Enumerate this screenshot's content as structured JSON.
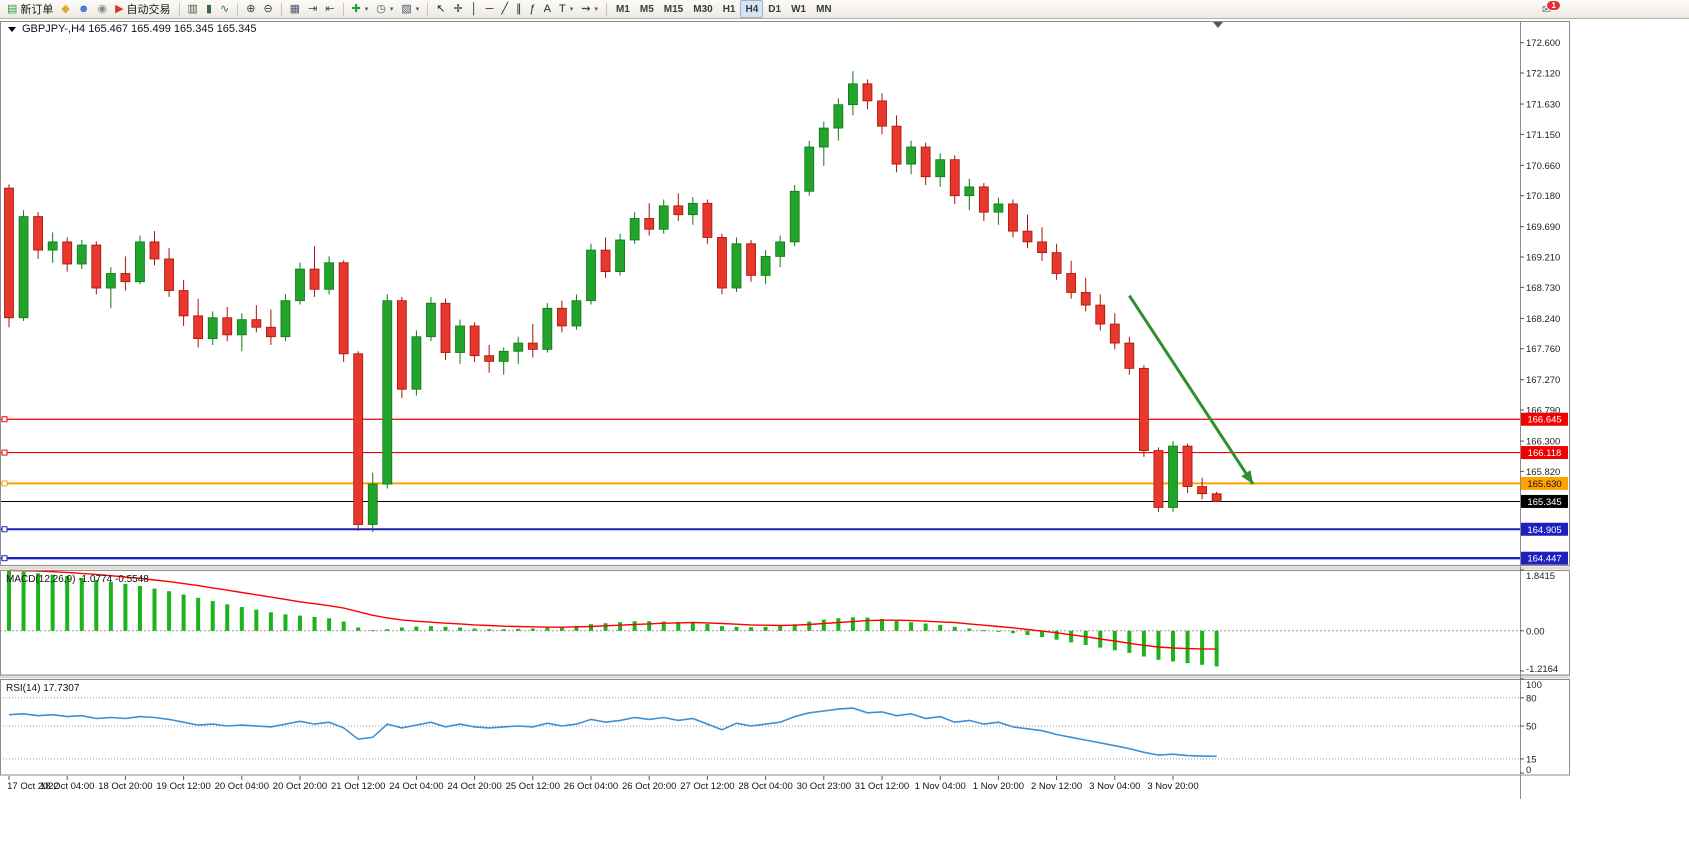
{
  "window": {
    "app": "MetaTrader terminal"
  },
  "toolbar": {
    "groups": [
      {
        "name": "trade-group",
        "items": [
          {
            "name": "new-order-button",
            "icon": "new-order-icon",
            "glyph": "▤",
            "color": "#1e9e3e",
            "label": "新订单"
          },
          {
            "name": "chart-layout-button",
            "icon": "layout-icon",
            "glyph": "◆",
            "color": "#e2a62a"
          },
          {
            "name": "contacts-button",
            "icon": "contacts-icon",
            "glyph": "☻",
            "color": "#3b6fd4"
          },
          {
            "name": "news-button",
            "icon": "news-icon",
            "glyph": "◉",
            "color": "#8a8a8a"
          },
          {
            "name": "auto-trading-button",
            "icon": "auto-trading-icon",
            "glyph": "▶",
            "color": "#d03a2b",
            "label": "自动交易"
          }
        ]
      },
      {
        "name": "chart-type-group",
        "items": [
          {
            "name": "bar-chart-button",
            "icon": "bar-chart-icon",
            "glyph": "▥",
            "color": "#4a5a3a"
          },
          {
            "name": "candlestick-chart-button",
            "icon": "candlestick-icon",
            "glyph": "▮",
            "color": "#3a6a4a"
          },
          {
            "name": "line-chart-button",
            "icon": "line-chart-icon",
            "glyph": "∿",
            "color": "#445566"
          }
        ]
      },
      {
        "name": "zoom-group",
        "items": [
          {
            "name": "zoom-in-button",
            "icon": "zoom-in-icon",
            "glyph": "⊕",
            "color": "#334455"
          },
          {
            "name": "zoom-out-button",
            "icon": "zoom-out-icon",
            "glyph": "⊖",
            "color": "#334455"
          }
        ]
      },
      {
        "name": "window-group",
        "items": [
          {
            "name": "tile-windows-button",
            "icon": "tile-windows-icon",
            "glyph": "▦",
            "color": "#445566"
          },
          {
            "name": "auto-scroll-button",
            "icon": "auto-scroll-icon",
            "glyph": "⇥",
            "color": "#445566"
          },
          {
            "name": "chart-shift-button",
            "icon": "chart-shift-icon",
            "glyph": "⇤",
            "color": "#445566"
          }
        ]
      },
      {
        "name": "objects-group",
        "items": [
          {
            "name": "new-chart-button",
            "icon": "new-chart-icon",
            "glyph": "✚",
            "color": "#1e9e3e",
            "caret": true
          },
          {
            "name": "period-button",
            "icon": "clock-icon",
            "glyph": "◷",
            "color": "#445566",
            "caret": true
          },
          {
            "name": "template-button",
            "icon": "template-icon",
            "glyph": "▧",
            "color": "#445566",
            "caret": true
          }
        ]
      },
      {
        "name": "drawing-group",
        "items": [
          {
            "name": "cursor-button",
            "icon": "cursor-icon",
            "glyph": "↖",
            "color": "#222233"
          },
          {
            "name": "crosshair-button",
            "icon": "crosshair-icon",
            "glyph": "✛",
            "color": "#222233"
          },
          {
            "name": "vertical-line-button",
            "icon": "vertical-line-icon",
            "glyph": "│",
            "color": "#222233"
          },
          {
            "name": "horizontal-line-button",
            "icon": "horizontal-line-icon",
            "glyph": "─",
            "color": "#222233"
          },
          {
            "name": "trendline-button",
            "icon": "trendline-icon",
            "glyph": "╱",
            "color": "#222233"
          },
          {
            "name": "channel-button",
            "icon": "channel-icon",
            "glyph": "∥",
            "color": "#222233"
          },
          {
            "name": "fibonacci-button",
            "icon": "fibonacci-icon",
            "glyph": "ƒ",
            "color": "#222233"
          },
          {
            "name": "text-button",
            "icon": "text-icon",
            "glyph": "A",
            "color": "#222233"
          },
          {
            "name": "label-button",
            "icon": "label-icon",
            "glyph": "T",
            "color": "#222233",
            "caret": true
          },
          {
            "name": "arrows-button",
            "icon": "arrow-object-icon",
            "glyph": "⇝",
            "color": "#222233",
            "caret": true
          }
        ]
      },
      {
        "name": "timeframe-group",
        "timeframes": true,
        "items": [
          {
            "name": "timeframe-m1",
            "label": "M1"
          },
          {
            "name": "timeframe-m5",
            "label": "M5"
          },
          {
            "name": "timeframe-m15",
            "label": "M15"
          },
          {
            "name": "timeframe-m30",
            "label": "M30"
          },
          {
            "name": "timeframe-h1",
            "label": "H1"
          },
          {
            "name": "timeframe-h4",
            "label": "H4",
            "active": true
          },
          {
            "name": "timeframe-d1",
            "label": "D1"
          },
          {
            "name": "timeframe-w1",
            "label": "W1"
          },
          {
            "name": "timeframe-mn",
            "label": "MN"
          }
        ]
      }
    ],
    "notification": {
      "name": "notifications-button",
      "icon": "mail-icon",
      "glyph": "✉",
      "badge": "1"
    }
  },
  "colors": {
    "bull": "#22a32b",
    "bull_border": "#0d7a14",
    "bear": "#e8372c",
    "bear_border": "#a51408",
    "macd_hist": "#1db31d",
    "macd_signal": "#ff0000",
    "rsi_line": "#3f8fd2"
  },
  "chart_data": {
    "type": "candlestick",
    "symbol": "GBPJPY-",
    "period": "H4",
    "title": "GBPJPY-,H4  165.467 165.499 165.345 165.345",
    "current_ohlc": {
      "open": "165.467",
      "high": "165.499",
      "low": "165.345",
      "close": "165.345"
    },
    "price_axis_ticks": [
      "172.600",
      "172.120",
      "171.630",
      "171.150",
      "170.660",
      "170.180",
      "169.690",
      "169.210",
      "168.730",
      "168.240",
      "167.760",
      "167.270",
      "166.790",
      "166.300",
      "165.820"
    ],
    "price_range": [
      164.34,
      172.88
    ],
    "time_labels": [
      "17 Oct 2022",
      "18 Oct 04:00",
      "18 Oct 20:00",
      "19 Oct 12:00",
      "20 Oct 04:00",
      "20 Oct 20:00",
      "21 Oct 12:00",
      "24 Oct 04:00",
      "24 Oct 20:00",
      "25 Oct 12:00",
      "26 Oct 04:00",
      "26 Oct 20:00",
      "27 Oct 12:00",
      "28 Oct 04:00",
      "30 Oct 23:00",
      "31 Oct 12:00",
      "1 Nov 04:00",
      "1 Nov 20:00",
      "2 Nov 12:00",
      "3 Nov 04:00",
      "3 Nov 20:00"
    ],
    "hlines": [
      {
        "price": 166.645,
        "label": "166.645",
        "color": "#f00000",
        "width": 1.2,
        "handle": true,
        "tag_text": "#ffffff"
      },
      {
        "price": 166.118,
        "label": "166.118",
        "color": "#f00000",
        "width": 1.2,
        "handle": true,
        "tag_text": "#ffffff"
      },
      {
        "price": 165.63,
        "label": "165.630",
        "color": "#ffa200",
        "width": 2,
        "handle": true,
        "tag_text": "#111111"
      },
      {
        "price": 165.345,
        "label": "165.345",
        "color": "#000000",
        "width": 1,
        "handle": false,
        "tag_text": "#ffffff"
      },
      {
        "price": 164.905,
        "label": "164.905",
        "color": "#2020c0",
        "width": 2,
        "handle": true,
        "tag_text": "#ffffff"
      },
      {
        "price": 164.447,
        "label": "164.447",
        "color": "#2020c0",
        "width": 2.4,
        "handle": true,
        "tag_text": "#ffffff"
      }
    ],
    "trend_arrow": {
      "direction": "down",
      "color": "#2f8f2f",
      "from_bar": 77,
      "from_price": 168.6,
      "to_bar": 85.5,
      "to_price": 165.62
    },
    "candles_ohlc": [
      [
        170.3,
        170.36,
        168.1,
        168.25
      ],
      [
        168.25,
        169.95,
        168.2,
        169.85
      ],
      [
        169.85,
        169.92,
        169.18,
        169.32
      ],
      [
        169.32,
        169.6,
        169.12,
        169.45
      ],
      [
        169.45,
        169.52,
        168.98,
        169.1
      ],
      [
        169.1,
        169.48,
        169.02,
        169.4
      ],
      [
        169.4,
        169.46,
        168.62,
        168.72
      ],
      [
        168.72,
        169.05,
        168.4,
        168.95
      ],
      [
        168.95,
        169.22,
        168.68,
        168.82
      ],
      [
        168.82,
        169.55,
        168.78,
        169.45
      ],
      [
        169.45,
        169.62,
        169.08,
        169.18
      ],
      [
        169.18,
        169.35,
        168.58,
        168.68
      ],
      [
        168.68,
        168.85,
        168.12,
        168.28
      ],
      [
        168.28,
        168.55,
        167.78,
        167.92
      ],
      [
        167.92,
        168.35,
        167.82,
        168.25
      ],
      [
        168.25,
        168.42,
        167.88,
        167.98
      ],
      [
        167.98,
        168.32,
        167.72,
        168.22
      ],
      [
        168.22,
        168.45,
        168.02,
        168.1
      ],
      [
        168.1,
        168.38,
        167.82,
        167.95
      ],
      [
        167.95,
        168.62,
        167.88,
        168.52
      ],
      [
        168.52,
        169.12,
        168.46,
        169.02
      ],
      [
        169.02,
        169.38,
        168.58,
        168.7
      ],
      [
        168.7,
        169.22,
        168.62,
        169.12
      ],
      [
        169.12,
        169.16,
        167.55,
        167.68
      ],
      [
        167.68,
        167.72,
        164.88,
        164.98
      ],
      [
        164.98,
        165.8,
        164.86,
        165.62
      ],
      [
        165.62,
        168.62,
        165.55,
        168.52
      ],
      [
        168.52,
        168.58,
        166.98,
        167.12
      ],
      [
        167.12,
        168.05,
        167.02,
        167.95
      ],
      [
        167.95,
        168.58,
        167.88,
        168.48
      ],
      [
        168.48,
        168.55,
        167.58,
        167.7
      ],
      [
        167.7,
        168.22,
        167.52,
        168.12
      ],
      [
        168.12,
        168.18,
        167.55,
        167.65
      ],
      [
        167.65,
        167.82,
        167.38,
        167.56
      ],
      [
        167.56,
        167.78,
        167.35,
        167.72
      ],
      [
        167.72,
        167.95,
        167.52,
        167.85
      ],
      [
        167.85,
        168.15,
        167.62,
        167.75
      ],
      [
        167.75,
        168.48,
        167.7,
        168.4
      ],
      [
        168.4,
        168.52,
        168.02,
        168.12
      ],
      [
        168.12,
        168.62,
        168.06,
        168.52
      ],
      [
        168.52,
        169.42,
        168.46,
        169.32
      ],
      [
        169.32,
        169.52,
        168.88,
        168.98
      ],
      [
        168.98,
        169.58,
        168.92,
        169.48
      ],
      [
        169.48,
        169.92,
        169.42,
        169.82
      ],
      [
        169.82,
        170.06,
        169.55,
        169.65
      ],
      [
        169.65,
        170.12,
        169.58,
        170.02
      ],
      [
        170.02,
        170.22,
        169.78,
        169.88
      ],
      [
        169.88,
        170.16,
        169.72,
        170.06
      ],
      [
        170.06,
        170.12,
        169.42,
        169.52
      ],
      [
        169.52,
        169.58,
        168.62,
        168.72
      ],
      [
        168.72,
        169.52,
        168.66,
        169.42
      ],
      [
        169.42,
        169.48,
        168.82,
        168.92
      ],
      [
        168.92,
        169.32,
        168.78,
        169.22
      ],
      [
        169.22,
        169.55,
        169.05,
        169.45
      ],
      [
        169.45,
        170.35,
        169.38,
        170.25
      ],
      [
        170.25,
        171.05,
        170.18,
        170.95
      ],
      [
        170.95,
        171.35,
        170.65,
        171.25
      ],
      [
        171.25,
        171.72,
        171.05,
        171.62
      ],
      [
        171.62,
        172.15,
        171.45,
        171.95
      ],
      [
        171.95,
        172.02,
        171.55,
        171.68
      ],
      [
        171.68,
        171.8,
        171.15,
        171.28
      ],
      [
        171.28,
        171.45,
        170.55,
        170.68
      ],
      [
        170.68,
        171.05,
        170.52,
        170.95
      ],
      [
        170.95,
        171.02,
        170.35,
        170.48
      ],
      [
        170.48,
        170.85,
        170.32,
        170.75
      ],
      [
        170.75,
        170.82,
        170.05,
        170.18
      ],
      [
        170.18,
        170.45,
        169.95,
        170.32
      ],
      [
        170.32,
        170.38,
        169.78,
        169.92
      ],
      [
        169.92,
        170.15,
        169.72,
        170.05
      ],
      [
        170.05,
        170.12,
        169.52,
        169.62
      ],
      [
        169.62,
        169.88,
        169.35,
        169.45
      ],
      [
        169.45,
        169.68,
        169.15,
        169.28
      ],
      [
        169.28,
        169.42,
        168.85,
        168.95
      ],
      [
        168.95,
        169.15,
        168.55,
        168.65
      ],
      [
        168.65,
        168.88,
        168.35,
        168.45
      ],
      [
        168.45,
        168.62,
        168.05,
        168.15
      ],
      [
        168.15,
        168.32,
        167.75,
        167.85
      ],
      [
        167.85,
        167.95,
        167.35,
        167.45
      ],
      [
        167.45,
        167.5,
        166.05,
        166.15
      ],
      [
        166.15,
        166.2,
        165.18,
        165.25
      ],
      [
        165.25,
        166.3,
        165.18,
        166.22
      ],
      [
        166.22,
        166.26,
        165.48,
        165.58
      ],
      [
        165.58,
        165.72,
        165.38,
        165.467
      ],
      [
        165.467,
        165.499,
        165.345,
        165.345
      ]
    ],
    "indicators": [
      {
        "type": "macd",
        "label": "MACD(12,26,9)",
        "values_label": "-1.0774 -0.5548",
        "full_label": "MACD(12,26,9) -1.0774 -0.5548",
        "scale": [
          "1.8415",
          "0.00",
          "-1.2164"
        ],
        "histogram": [
          1.8415,
          1.79,
          1.74,
          1.7,
          1.66,
          1.6,
          1.54,
          1.48,
          1.42,
          1.36,
          1.28,
          1.2,
          1.1,
          1.0,
          0.9,
          0.8,
          0.72,
          0.64,
          0.56,
          0.5,
          0.46,
          0.42,
          0.38,
          0.28,
          0.1,
          0.02,
          0.05,
          0.1,
          0.13,
          0.14,
          0.12,
          0.1,
          0.07,
          0.05,
          0.05,
          0.06,
          0.07,
          0.1,
          0.12,
          0.15,
          0.2,
          0.23,
          0.26,
          0.29,
          0.29,
          0.28,
          0.27,
          0.26,
          0.21,
          0.14,
          0.12,
          0.11,
          0.12,
          0.14,
          0.2,
          0.28,
          0.34,
          0.38,
          0.41,
          0.4,
          0.36,
          0.3,
          0.26,
          0.22,
          0.18,
          0.12,
          0.07,
          0.02,
          -0.02,
          -0.07,
          -0.13,
          -0.19,
          -0.27,
          -0.35,
          -0.43,
          -0.51,
          -0.59,
          -0.67,
          -0.78,
          -0.88,
          -0.93,
          -0.98,
          -1.03,
          -1.0774
        ],
        "signal": [
          1.83,
          1.82,
          1.81,
          1.79,
          1.77,
          1.74,
          1.71,
          1.67,
          1.63,
          1.59,
          1.54,
          1.49,
          1.43,
          1.37,
          1.3,
          1.23,
          1.16,
          1.09,
          1.02,
          0.95,
          0.88,
          0.82,
          0.76,
          0.69,
          0.58,
          0.47,
          0.39,
          0.33,
          0.29,
          0.26,
          0.23,
          0.21,
          0.18,
          0.16,
          0.14,
          0.13,
          0.12,
          0.11,
          0.11,
          0.12,
          0.13,
          0.15,
          0.17,
          0.19,
          0.21,
          0.23,
          0.24,
          0.25,
          0.24,
          0.22,
          0.2,
          0.18,
          0.17,
          0.16,
          0.17,
          0.19,
          0.22,
          0.25,
          0.28,
          0.31,
          0.32,
          0.32,
          0.31,
          0.29,
          0.27,
          0.25,
          0.21,
          0.17,
          0.13,
          0.09,
          0.04,
          -0.01,
          -0.06,
          -0.12,
          -0.18,
          -0.25,
          -0.31,
          -0.38,
          -0.44,
          -0.49,
          -0.52,
          -0.54,
          -0.55,
          -0.5548
        ]
      },
      {
        "type": "rsi",
        "label": "RSI(14)",
        "value_label": "17.7307",
        "full_label": "RSI(14) 17.7307",
        "scale": [
          "100",
          "80",
          "50",
          "15",
          "0"
        ],
        "levels": [
          80,
          50,
          15
        ],
        "values": [
          62,
          63,
          61,
          62,
          60,
          61,
          58,
          59,
          58,
          60,
          59,
          57,
          54,
          51,
          52,
          50,
          51,
          50,
          49,
          52,
          55,
          52,
          54,
          48,
          36,
          38,
          52,
          48,
          51,
          54,
          49,
          52,
          49,
          48,
          49,
          50,
          49,
          53,
          50,
          52,
          57,
          54,
          56,
          59,
          57,
          59,
          56,
          58,
          52,
          46,
          53,
          50,
          52,
          54,
          60,
          64,
          66,
          68,
          69,
          64,
          65,
          61,
          63,
          58,
          60,
          54,
          56,
          52,
          54,
          49,
          47,
          45,
          41,
          38,
          35,
          32,
          29,
          26,
          22,
          19,
          20,
          18.5,
          18,
          17.73
        ]
      }
    ]
  }
}
